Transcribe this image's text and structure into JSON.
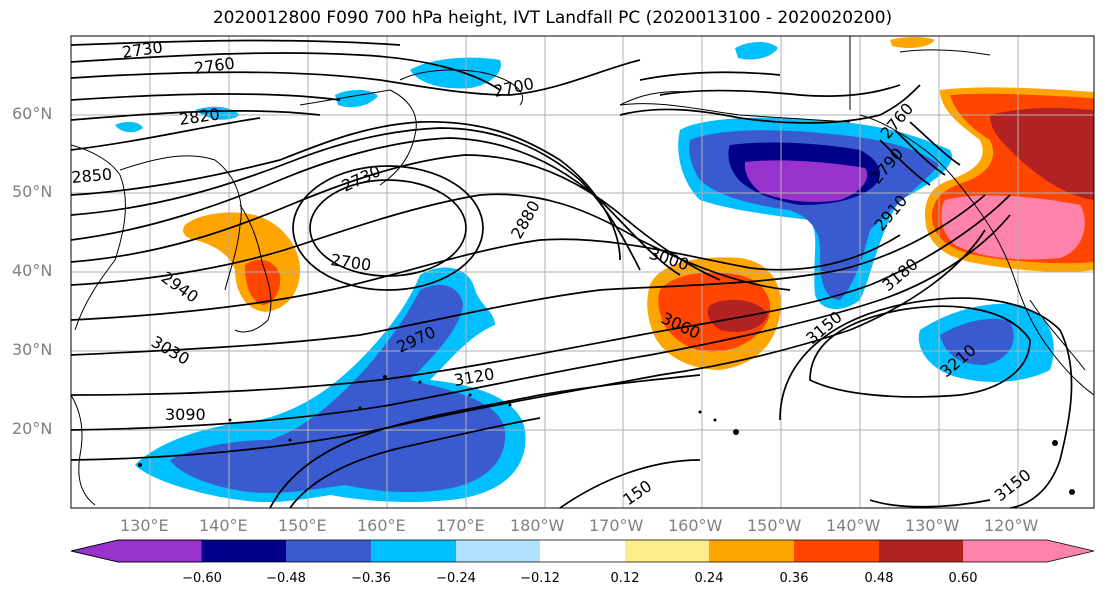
{
  "title": "2020012800 F090 700 hPa height, IVT Landfall PC (2020013100 - 2020020200)",
  "latitude_labels": [
    "60°N",
    "50°N",
    "40°N",
    "30°N",
    "20°N"
  ],
  "longitude_labels": [
    "130°E",
    "140°E",
    "150°E",
    "160°E",
    "170°E",
    "180°W",
    "170°W",
    "160°W",
    "150°W",
    "140°W",
    "130°W",
    "120°W"
  ],
  "contour_labels": [
    "2730",
    "2760",
    "2820",
    "2850",
    "2700",
    "2730",
    "2700",
    "2880",
    "2940",
    "3030",
    "2970",
    "3090",
    "3000",
    "3060",
    "3120",
    "3150",
    "3180",
    "3210",
    "2910",
    "2790",
    "2760",
    "150",
    "3150"
  ],
  "colorbar": {
    "ticks": [
      "−0.60",
      "−0.48",
      "−0.36",
      "−0.24",
      "−0.12",
      "0.12",
      "0.24",
      "0.36",
      "0.48",
      "0.60"
    ],
    "colors": [
      "#9932cc",
      "#00008b",
      "#3a5bd0",
      "#00bfff",
      "#b0e2ff",
      "#ffffff",
      "#ffec8b",
      "#ffa500",
      "#ff4500",
      "#b22222",
      "#ff82ab"
    ]
  }
}
